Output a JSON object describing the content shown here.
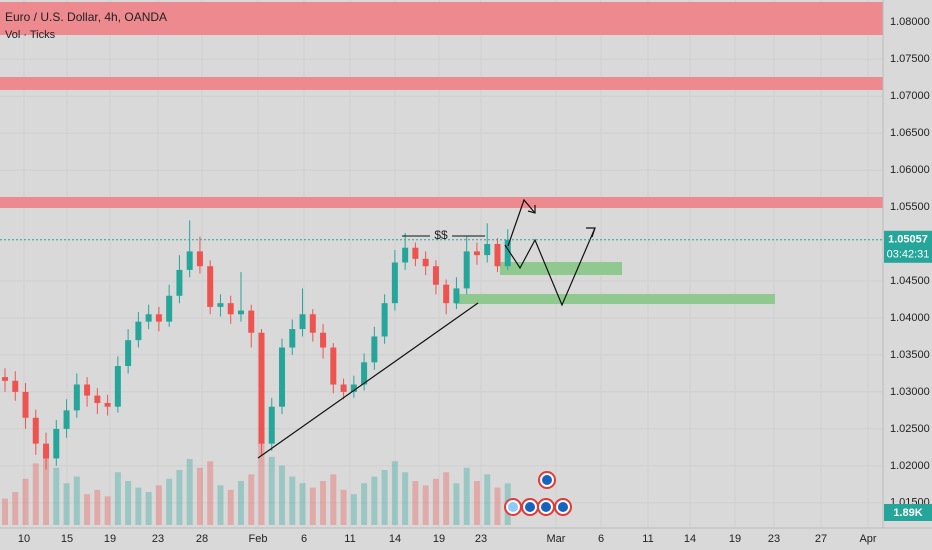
{
  "chart_data": {
    "type": "candlestick",
    "title": "Euro / U.S. Dollar, 4h, OANDA",
    "subtitle": "Vol · Ticks",
    "annotation": "$$",
    "timer": "03:42:31",
    "up_color": "#26a69a",
    "down_color": "#ef5350",
    "grid": true,
    "ylim": [
      1.012,
      1.083
    ],
    "yticks": [
      {
        "value": 1.08,
        "label": "1.08000"
      },
      {
        "value": 1.075,
        "label": "1.07500"
      },
      {
        "value": 1.07,
        "label": "1.07000"
      },
      {
        "value": 1.065,
        "label": "1.06500"
      },
      {
        "value": 1.06,
        "label": "1.06000"
      },
      {
        "value": 1.055,
        "label": "1.05500"
      },
      {
        "value": 1.045,
        "label": "1.04500"
      },
      {
        "value": 1.04,
        "label": "1.04000"
      },
      {
        "value": 1.035,
        "label": "1.03500"
      },
      {
        "value": 1.03,
        "label": "1.03000"
      },
      {
        "value": 1.025,
        "label": "1.02500"
      },
      {
        "value": 1.02,
        "label": "1.02000"
      },
      {
        "value": 1.015,
        "label": "1.01500"
      }
    ],
    "xtick_labels": [
      "10",
      "15",
      "19",
      "23",
      "28",
      "Feb",
      "6",
      "11",
      "14",
      "19",
      "23",
      "Mar",
      "6",
      "11",
      "14",
      "19",
      "23",
      "27",
      "Apr"
    ],
    "open": [
      1.032,
      1.0315,
      1.03,
      1.0265,
      1.023,
      1.021,
      1.025,
      1.0275,
      1.031,
      1.0295,
      1.0285,
      1.028,
      1.0335,
      1.037,
      1.0395,
      1.0405,
      1.0395,
      1.043,
      1.0465,
      1.049,
      1.047,
      1.0415,
      1.042,
      1.0405,
      1.041,
      1.038,
      1.023,
      1.028,
      1.036,
      1.0385,
      1.0405,
      1.038,
      1.036,
      1.031,
      1.03,
      1.031,
      1.034,
      1.0375,
      1.042,
      1.0475,
      1.0495,
      1.048,
      1.047,
      1.0445,
      1.042,
      1.044,
      1.049,
      1.0485,
      1.05,
      1.047
    ],
    "high": [
      1.0332,
      1.0328,
      1.0312,
      1.0276,
      1.0245,
      1.0262,
      1.029,
      1.0325,
      1.032,
      1.0305,
      1.0296,
      1.0348,
      1.0385,
      1.0408,
      1.0418,
      1.0415,
      1.0445,
      1.0485,
      1.0532,
      1.051,
      1.0478,
      1.0432,
      1.043,
      1.0462,
      1.0418,
      1.0385,
      1.0292,
      1.0372,
      1.0398,
      1.044,
      1.0412,
      1.0392,
      1.0366,
      1.0318,
      1.0322,
      1.0352,
      1.0388,
      1.0432,
      1.0492,
      1.0515,
      1.0502,
      1.049,
      1.0478,
      1.0452,
      1.0455,
      1.051,
      1.0502,
      1.0528,
      1.0508,
      1.052
    ],
    "low": [
      1.03,
      1.0288,
      1.025,
      1.0215,
      1.0195,
      1.02,
      1.0238,
      1.0265,
      1.028,
      1.027,
      1.0268,
      1.0272,
      1.0325,
      1.036,
      1.0385,
      1.0382,
      1.0388,
      1.042,
      1.0455,
      1.046,
      1.0405,
      1.0402,
      1.0392,
      1.0395,
      1.036,
      1.0215,
      1.022,
      1.027,
      1.035,
      1.0375,
      1.0368,
      1.0345,
      1.0298,
      1.029,
      1.0292,
      1.0302,
      1.033,
      1.0365,
      1.041,
      1.0465,
      1.047,
      1.0458,
      1.0432,
      1.0405,
      1.0412,
      1.0432,
      1.0472,
      1.0475,
      1.0462,
      1.0465
    ],
    "close": [
      1.0315,
      1.03,
      1.0265,
      1.023,
      1.021,
      1.025,
      1.0275,
      1.031,
      1.0295,
      1.0285,
      1.028,
      1.0335,
      1.037,
      1.0395,
      1.0405,
      1.0395,
      1.043,
      1.0465,
      1.049,
      1.047,
      1.0415,
      1.042,
      1.0405,
      1.041,
      1.038,
      1.023,
      1.028,
      1.036,
      1.0385,
      1.0405,
      1.038,
      1.036,
      1.031,
      1.03,
      1.031,
      1.034,
      1.0375,
      1.042,
      1.0475,
      1.0495,
      1.048,
      1.047,
      1.0445,
      1.042,
      1.044,
      1.049,
      1.0485,
      1.05,
      1.047,
      1.05057
    ],
    "volume": [
      1.2,
      1.5,
      2.1,
      2.8,
      3.4,
      2.6,
      1.9,
      2.2,
      1.4,
      1.6,
      1.3,
      2.4,
      2.0,
      1.7,
      1.5,
      1.8,
      2.1,
      2.5,
      3.0,
      2.6,
      2.9,
      1.8,
      1.6,
      2.0,
      2.3,
      3.8,
      3.1,
      2.7,
      2.2,
      1.9,
      1.7,
      2.0,
      2.3,
      1.6,
      1.4,
      1.9,
      2.2,
      2.5,
      2.9,
      2.4,
      2.0,
      1.8,
      2.1,
      2.4,
      1.9,
      2.6,
      2.0,
      2.3,
      1.7,
      1.89
    ],
    "volume_label": "1.89K",
    "vlim": [
      0,
      5
    ]
  }
}
